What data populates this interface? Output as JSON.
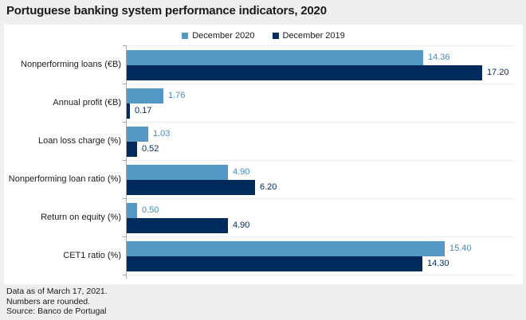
{
  "title": "Portuguese banking system performance indicators, 2020",
  "legend": [
    {
      "label": "December 2020",
      "color": "#5397c4"
    },
    {
      "label": "December 2019",
      "color": "#002b5c"
    }
  ],
  "chart_data": {
    "type": "bar",
    "orientation": "horizontal",
    "title": "Portuguese banking system performance indicators, 2020",
    "categories": [
      "Nonperforming loans (€B)",
      "Annual profit (€B)",
      "Loan loss charge (%)",
      "Nonperforming loan ratio (%)",
      "Return on equity (%)",
      "CET1 ratio (%)"
    ],
    "series": [
      {
        "name": "December 2020",
        "color": "#5397c4",
        "label_color": "#4389ba",
        "values": [
          14.36,
          1.76,
          1.03,
          4.9,
          0.5,
          15.4
        ]
      },
      {
        "name": "December 2019",
        "color": "#002b5c",
        "label_color": "#002b5c",
        "values": [
          17.2,
          0.17,
          0.52,
          6.2,
          4.9,
          14.3
        ]
      }
    ],
    "xlim": [
      0,
      17.2
    ],
    "grid": "category-separators",
    "legend_position": "top",
    "value_label_decimals": 2
  },
  "footer": {
    "lines": [
      "Data as of March 17, 2021.",
      "Numbers are rounded.",
      "Source: Banco de Portugal"
    ]
  },
  "colors": {
    "background": "#efefef",
    "panel": "#ffffff",
    "axis": "#a9a9a9",
    "gridline": "#ececec",
    "text": "#1a1a1a"
  }
}
